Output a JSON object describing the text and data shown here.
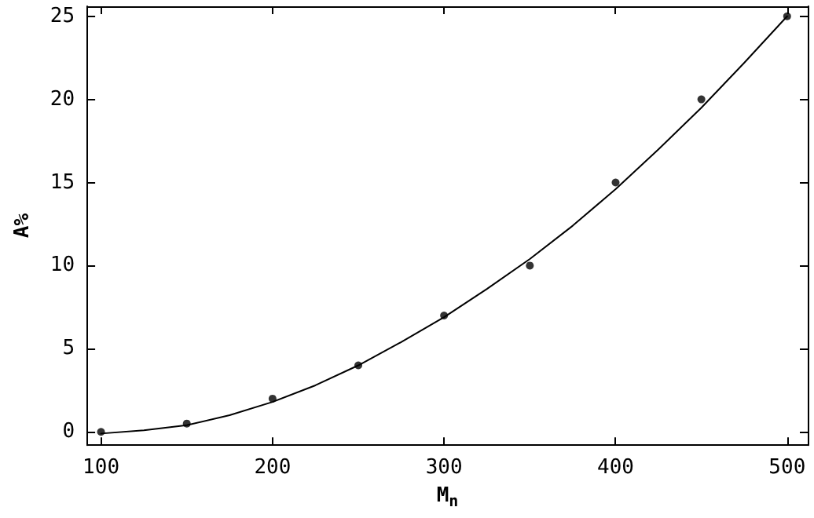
{
  "chart_data": {
    "type": "scatter",
    "xlabel": "M$_{n}$",
    "ylabel": "A%",
    "xlim": [
      92,
      512
    ],
    "ylim": [
      -0.8,
      25.6
    ],
    "xticks": [
      100,
      200,
      300,
      400,
      500
    ],
    "yticks": [
      0,
      5,
      10,
      15,
      20,
      25
    ],
    "grid": false,
    "marker": "circle",
    "series": [
      {
        "color": "#000000",
        "x": [
          100,
          150,
          200,
          250,
          300,
          350,
          400,
          450,
          500
        ],
        "values": [
          0,
          0.5,
          2,
          4,
          7,
          10,
          15,
          20,
          25
        ]
      },
      {
        "type": "line",
        "color": "#000000",
        "marker": "none",
        "line_style": "solid",
        "x": [
          100,
          125,
          150,
          175,
          200,
          225,
          250,
          275,
          300,
          325,
          350,
          375,
          400,
          425,
          450,
          475,
          500
        ],
        "values": [
          -0.1,
          0.1,
          0.4,
          1.0,
          1.8,
          2.8,
          4.0,
          5.4,
          6.9,
          8.6,
          10.4,
          12.4,
          14.6,
          17,
          19.5,
          22.2,
          25
        ]
      }
    ]
  }
}
